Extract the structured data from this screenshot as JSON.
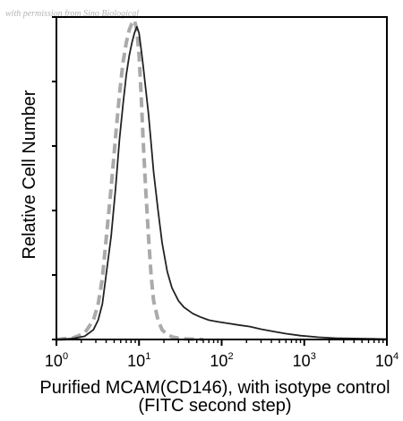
{
  "watermark": "with permission from Sino Biological",
  "chart_data": {
    "type": "line",
    "xlabel_lines": [
      "Purified MCAM(CD146), with isotype control",
      "(FITC second step)"
    ],
    "ylabel": "Relative Cell Number",
    "x_scale": "log",
    "xlim": [
      1,
      10000
    ],
    "ylim": [
      0,
      100
    ],
    "x_ticks": [
      {
        "base": "10",
        "exp": "0",
        "value": 1
      },
      {
        "base": "10",
        "exp": "1",
        "value": 10
      },
      {
        "base": "10",
        "exp": "2",
        "value": 100
      },
      {
        "base": "10",
        "exp": "3",
        "value": 1000
      },
      {
        "base": "10",
        "exp": "4",
        "value": 10000
      }
    ],
    "y_ticks": [
      0,
      20,
      40,
      60,
      80,
      100
    ],
    "grid": false,
    "legend": "none",
    "series": [
      {
        "style": "solid",
        "color": "#222222",
        "x": [
          1,
          1.6,
          2.2,
          2.8,
          3.2,
          3.6,
          4.0,
          4.6,
          5.2,
          5.8,
          6.4,
          7.0,
          7.6,
          8.2,
          8.8,
          9.4,
          10,
          10.6,
          11.2,
          12,
          13,
          14,
          15,
          17,
          19,
          22,
          25,
          30,
          35,
          45,
          55,
          70,
          90,
          120,
          160,
          220,
          300,
          420,
          600,
          900,
          1500,
          2500,
          4000,
          7000,
          10000
        ],
        "y": [
          0,
          0.3,
          1,
          3,
          6,
          11,
          20,
          32,
          47,
          62,
          73,
          82,
          88,
          92,
          95,
          97,
          95,
          90,
          85,
          78,
          70,
          61,
          52,
          40,
          30,
          21,
          16,
          12,
          10,
          8,
          7,
          6,
          5.5,
          5,
          4.5,
          4,
          3.2,
          2.5,
          1.8,
          1.2,
          0.7,
          0.4,
          0.3,
          0.2,
          0.1
        ]
      },
      {
        "style": "dashed",
        "color": "#aaaaaa",
        "x": [
          1,
          1.6,
          2.2,
          2.8,
          3.2,
          3.6,
          4.0,
          4.6,
          5.2,
          5.8,
          6.4,
          7.0,
          7.6,
          8.2,
          8.8,
          9.4,
          10,
          10.6,
          11.2,
          12,
          13,
          14,
          15,
          17,
          19,
          22,
          25,
          30,
          35,
          45,
          60
        ],
        "y": [
          0,
          0.5,
          2,
          6,
          11,
          19,
          31,
          47,
          63,
          76,
          86,
          92,
          96,
          98,
          99,
          96,
          88,
          76,
          62,
          47,
          32,
          20,
          12,
          6,
          3,
          1.5,
          0.8,
          0.4,
          0.2,
          0.1,
          0
        ]
      }
    ]
  }
}
